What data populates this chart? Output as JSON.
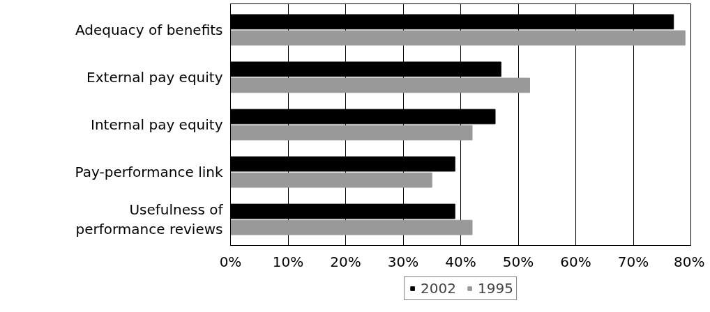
{
  "chart_data": {
    "type": "bar",
    "orientation": "horizontal",
    "categories": [
      "Adequacy of benefits",
      "External pay equity",
      "Internal pay equity",
      "Pay-performance link",
      "Usefulness of performance reviews"
    ],
    "series": [
      {
        "name": "2002",
        "color": "#000000",
        "values": [
          77,
          47,
          46,
          39,
          39
        ]
      },
      {
        "name": "1995",
        "color": "#999999",
        "values": [
          79,
          52,
          42,
          35,
          42
        ]
      }
    ],
    "xlim": [
      0,
      80
    ],
    "xticks": [
      {
        "value": 0,
        "label": "0%"
      },
      {
        "value": 10,
        "label": "10%"
      },
      {
        "value": 20,
        "label": "20%"
      },
      {
        "value": 30,
        "label": "30%"
      },
      {
        "value": 40,
        "label": "40%"
      },
      {
        "value": 50,
        "label": "50%"
      },
      {
        "value": 60,
        "label": "60%"
      },
      {
        "value": 70,
        "label": "70%"
      },
      {
        "value": 80,
        "label": "80%"
      }
    ],
    "grid": "x",
    "legend": "bottom"
  }
}
